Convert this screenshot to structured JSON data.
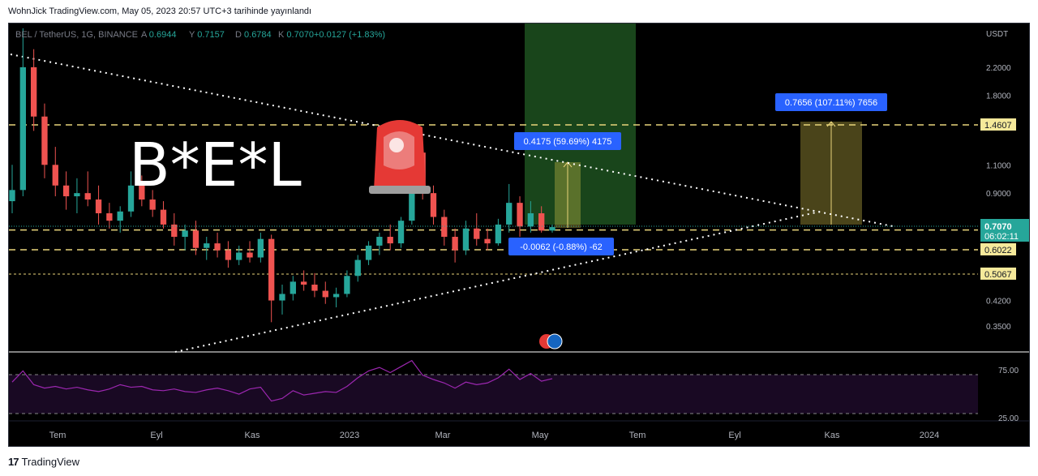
{
  "header": {
    "publish_text": "WohnJick TradingView.com, May 05, 2023 20:57 UTC+3 tarihinde yayınlandı"
  },
  "legend": {
    "symbol": "BEL / TetherUS, 1G, BINANCE",
    "o_label": "A",
    "o_value": "0.6944",
    "h_label": "Y",
    "h_value": "0.7157",
    "l_label": "D",
    "l_value": "0.6784",
    "c_label": "K",
    "c_value": "0.7070",
    "change": "+0.0127 (+1.83%)"
  },
  "chart_data": {
    "type": "candlestick",
    "title": "B*E*L",
    "currency": "USDT",
    "y_scale": "log",
    "ylim": [
      0.3,
      3.0
    ],
    "y_ticks": [
      "2.2000",
      "1.8000",
      "1.1000",
      "0.9000",
      "0.4200",
      "0.3500"
    ],
    "x_ticks": [
      "Tem",
      "Eyl",
      "Kas",
      "2023",
      "Mar",
      "May",
      "Tem",
      "Eyl",
      "Kas",
      "2024"
    ],
    "last_price": "0.7070",
    "countdown": "06:02:11",
    "horizontal_levels": [
      {
        "value": 1.4607,
        "label": "1.4607"
      },
      {
        "value": 0.6925,
        "label": "0.6925"
      },
      {
        "value": 0.6022,
        "label": "0.6022"
      },
      {
        "value": 0.5067,
        "label": "0.5067"
      }
    ],
    "measures": [
      {
        "label": "0.4175 (59.69%) 4175"
      },
      {
        "label": "0.7656 (107.11%) 7656"
      },
      {
        "label": "-0.0062 (-0.88%) -62"
      }
    ],
    "trendlines": [
      "descending resistance",
      "ascending support"
    ],
    "candles": [
      {
        "t": 0,
        "o": 0.85,
        "h": 1.1,
        "l": 0.78,
        "c": 0.92
      },
      {
        "t": 1,
        "o": 0.92,
        "h": 2.9,
        "l": 0.88,
        "c": 2.2
      },
      {
        "t": 2,
        "o": 2.2,
        "h": 2.5,
        "l": 1.4,
        "c": 1.55
      },
      {
        "t": 3,
        "o": 1.55,
        "h": 1.7,
        "l": 1.0,
        "c": 1.1
      },
      {
        "t": 4,
        "o": 1.1,
        "h": 1.25,
        "l": 0.88,
        "c": 0.95
      },
      {
        "t": 5,
        "o": 0.95,
        "h": 1.05,
        "l": 0.8,
        "c": 0.88
      },
      {
        "t": 6,
        "o": 0.88,
        "h": 1.0,
        "l": 0.78,
        "c": 0.9
      },
      {
        "t": 7,
        "o": 0.9,
        "h": 1.05,
        "l": 0.82,
        "c": 0.86
      },
      {
        "t": 8,
        "o": 0.86,
        "h": 0.95,
        "l": 0.72,
        "c": 0.78
      },
      {
        "t": 9,
        "o": 0.78,
        "h": 0.84,
        "l": 0.7,
        "c": 0.74
      },
      {
        "t": 10,
        "o": 0.74,
        "h": 0.82,
        "l": 0.68,
        "c": 0.79
      },
      {
        "t": 11,
        "o": 0.79,
        "h": 1.05,
        "l": 0.76,
        "c": 0.95
      },
      {
        "t": 12,
        "o": 0.95,
        "h": 1.02,
        "l": 0.82,
        "c": 0.86
      },
      {
        "t": 13,
        "o": 0.86,
        "h": 0.92,
        "l": 0.76,
        "c": 0.8
      },
      {
        "t": 14,
        "o": 0.8,
        "h": 0.85,
        "l": 0.7,
        "c": 0.72
      },
      {
        "t": 15,
        "o": 0.72,
        "h": 0.78,
        "l": 0.62,
        "c": 0.66
      },
      {
        "t": 16,
        "o": 0.66,
        "h": 0.72,
        "l": 0.6,
        "c": 0.69
      },
      {
        "t": 17,
        "o": 0.69,
        "h": 0.74,
        "l": 0.58,
        "c": 0.61
      },
      {
        "t": 18,
        "o": 0.61,
        "h": 0.66,
        "l": 0.56,
        "c": 0.63
      },
      {
        "t": 19,
        "o": 0.63,
        "h": 0.68,
        "l": 0.57,
        "c": 0.6
      },
      {
        "t": 20,
        "o": 0.6,
        "h": 0.64,
        "l": 0.53,
        "c": 0.56
      },
      {
        "t": 21,
        "o": 0.56,
        "h": 0.62,
        "l": 0.54,
        "c": 0.59
      },
      {
        "t": 22,
        "o": 0.59,
        "h": 0.64,
        "l": 0.55,
        "c": 0.57
      },
      {
        "t": 23,
        "o": 0.57,
        "h": 0.68,
        "l": 0.55,
        "c": 0.65
      },
      {
        "t": 24,
        "o": 0.65,
        "h": 0.67,
        "l": 0.36,
        "c": 0.42
      },
      {
        "t": 25,
        "o": 0.42,
        "h": 0.47,
        "l": 0.38,
        "c": 0.44
      },
      {
        "t": 26,
        "o": 0.44,
        "h": 0.5,
        "l": 0.42,
        "c": 0.48
      },
      {
        "t": 27,
        "o": 0.48,
        "h": 0.52,
        "l": 0.45,
        "c": 0.47
      },
      {
        "t": 28,
        "o": 0.47,
        "h": 0.51,
        "l": 0.43,
        "c": 0.45
      },
      {
        "t": 29,
        "o": 0.45,
        "h": 0.48,
        "l": 0.41,
        "c": 0.43
      },
      {
        "t": 30,
        "o": 0.43,
        "h": 0.46,
        "l": 0.4,
        "c": 0.44
      },
      {
        "t": 31,
        "o": 0.44,
        "h": 0.52,
        "l": 0.43,
        "c": 0.5
      },
      {
        "t": 32,
        "o": 0.5,
        "h": 0.58,
        "l": 0.48,
        "c": 0.56
      },
      {
        "t": 33,
        "o": 0.56,
        "h": 0.64,
        "l": 0.54,
        "c": 0.62
      },
      {
        "t": 34,
        "o": 0.62,
        "h": 0.68,
        "l": 0.58,
        "c": 0.66
      },
      {
        "t": 35,
        "o": 0.66,
        "h": 0.72,
        "l": 0.6,
        "c": 0.63
      },
      {
        "t": 36,
        "o": 0.63,
        "h": 0.76,
        "l": 0.61,
        "c": 0.74
      },
      {
        "t": 37,
        "o": 0.74,
        "h": 1.4,
        "l": 0.72,
        "c": 1.2
      },
      {
        "t": 38,
        "o": 1.2,
        "h": 1.25,
        "l": 0.86,
        "c": 0.9
      },
      {
        "t": 39,
        "o": 0.9,
        "h": 0.95,
        "l": 0.72,
        "c": 0.76
      },
      {
        "t": 40,
        "o": 0.76,
        "h": 0.8,
        "l": 0.62,
        "c": 0.66
      },
      {
        "t": 41,
        "o": 0.66,
        "h": 0.7,
        "l": 0.55,
        "c": 0.6
      },
      {
        "t": 42,
        "o": 0.6,
        "h": 0.74,
        "l": 0.58,
        "c": 0.7
      },
      {
        "t": 43,
        "o": 0.7,
        "h": 0.78,
        "l": 0.62,
        "c": 0.65
      },
      {
        "t": 44,
        "o": 0.65,
        "h": 0.7,
        "l": 0.6,
        "c": 0.63
      },
      {
        "t": 45,
        "o": 0.63,
        "h": 0.75,
        "l": 0.62,
        "c": 0.72
      },
      {
        "t": 46,
        "o": 0.72,
        "h": 0.96,
        "l": 0.68,
        "c": 0.84
      },
      {
        "t": 47,
        "o": 0.84,
        "h": 0.88,
        "l": 0.66,
        "c": 0.71
      },
      {
        "t": 48,
        "o": 0.71,
        "h": 0.85,
        "l": 0.68,
        "c": 0.78
      },
      {
        "t": 49,
        "o": 0.78,
        "h": 0.82,
        "l": 0.68,
        "c": 0.69
      },
      {
        "t": 50,
        "o": 0.69,
        "h": 0.72,
        "l": 0.68,
        "c": 0.707
      }
    ],
    "rsi": {
      "upper": "75.00",
      "lower": "25.00",
      "values": [
        55,
        68,
        52,
        48,
        50,
        47,
        49,
        46,
        44,
        47,
        52,
        49,
        50,
        46,
        45,
        47,
        44,
        43,
        46,
        48,
        45,
        41,
        47,
        49,
        33,
        36,
        45,
        40,
        42,
        44,
        43,
        50,
        60,
        68,
        72,
        66,
        73,
        80,
        63,
        58,
        54,
        48,
        55,
        52,
        54,
        60,
        70,
        58,
        65,
        56,
        59
      ]
    }
  },
  "colors": {
    "up": "#26a69a",
    "down": "#ef5350",
    "level": "#e8d47a",
    "rsi": "#9c27b0",
    "measure_label": "#2962ff",
    "zone_green": "#4caf50",
    "zone_yellow": "#d4c34a",
    "price_tag": "#26a69a",
    "level_tag": "#f5e99a"
  },
  "footer": {
    "brand": "TradingView"
  }
}
